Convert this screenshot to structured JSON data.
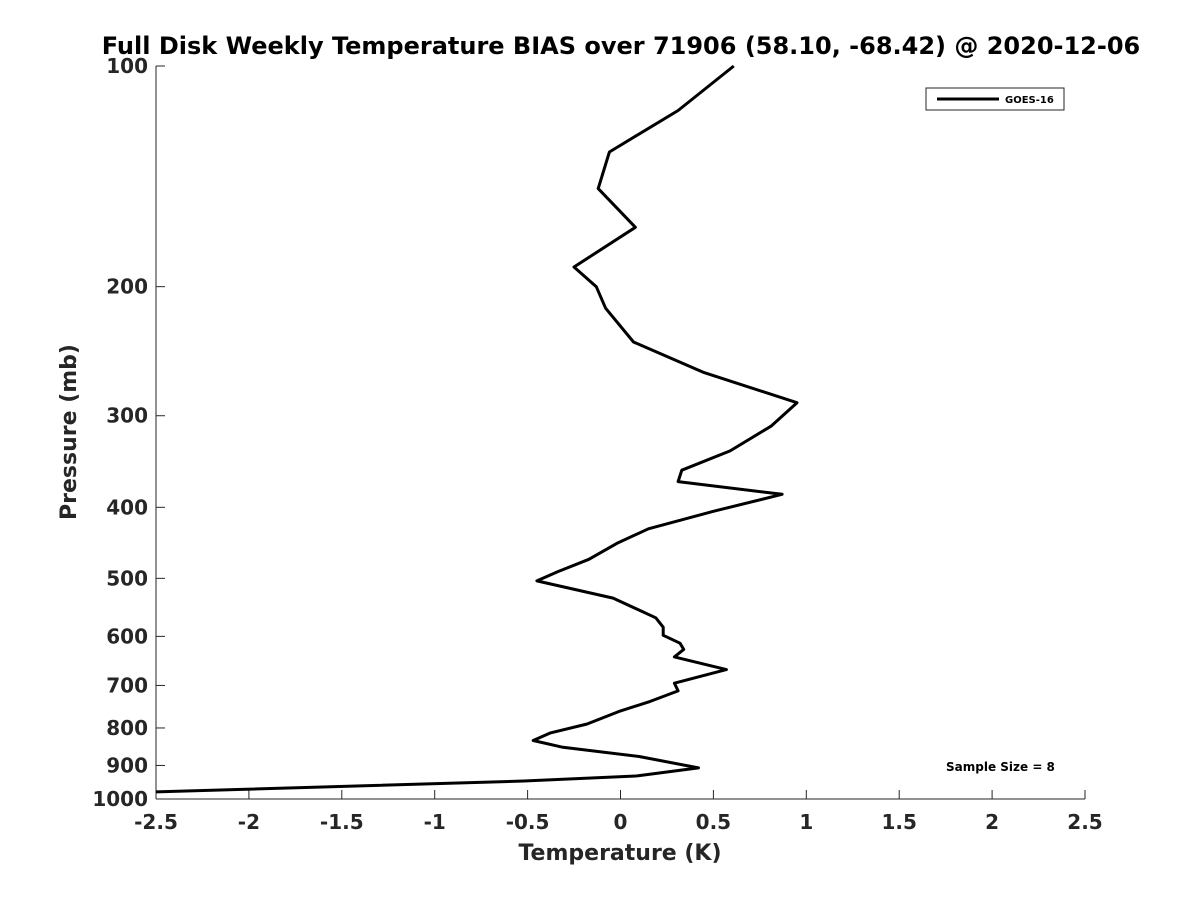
{
  "chart_data": {
    "type": "line",
    "title": "Full Disk Weekly Temperature BIAS over 71906 (58.10, -68.42) @ 2020-12-06",
    "xlabel": "Temperature (K)",
    "ylabel": "Pressure (mb)",
    "xlim": [
      -2.5,
      2.5
    ],
    "ylim": [
      1000,
      100
    ],
    "y_scale": "log",
    "y_reversed": true,
    "x_ticks": [
      "-2.5",
      "-2",
      "-1.5",
      "-1",
      "-0.5",
      "0",
      "0.5",
      "1",
      "1.5",
      "2",
      "2.5"
    ],
    "x_tick_values": [
      -2.5,
      -2,
      -1.5,
      -1,
      -0.5,
      0,
      0.5,
      1,
      1.5,
      2,
      2.5
    ],
    "y_ticks": [
      "100",
      "200",
      "300",
      "400",
      "500",
      "600",
      "700",
      "800",
      "900",
      "1000"
    ],
    "y_tick_values": [
      100,
      200,
      300,
      400,
      500,
      600,
      700,
      800,
      900,
      1000
    ],
    "grid": false,
    "legend_position": "top-right",
    "line_color": "#000000",
    "annotation": "Sample Size = 8",
    "series": [
      {
        "name": "GOES-16",
        "x": [
          0.61,
          0.31,
          -0.06,
          -0.12,
          0.08,
          -0.25,
          -0.13,
          -0.08,
          0.07,
          0.45,
          0.95,
          0.81,
          0.59,
          0.33,
          0.31,
          0.87,
          0.5,
          0.15,
          -0.02,
          -0.17,
          -0.34,
          -0.45,
          -0.04,
          0.19,
          0.23,
          0.23,
          0.32,
          0.34,
          0.29,
          0.57,
          0.29,
          0.31,
          0.16,
          -0.01,
          -0.18,
          -0.38,
          -0.47,
          -0.31,
          0.1,
          0.42,
          0.09,
          -0.52,
          -2.5
        ],
        "y": [
          100,
          115,
          131,
          147,
          166,
          188,
          200,
          214,
          238,
          262,
          288,
          310,
          335,
          356,
          369,
          384,
          405,
          428,
          448,
          471,
          490,
          504,
          532,
          566,
          583,
          598,
          613,
          625,
          640,
          666,
          695,
          712,
          736,
          760,
          790,
          813,
          832,
          850,
          875,
          907,
          930,
          945,
          978
        ]
      }
    ]
  }
}
